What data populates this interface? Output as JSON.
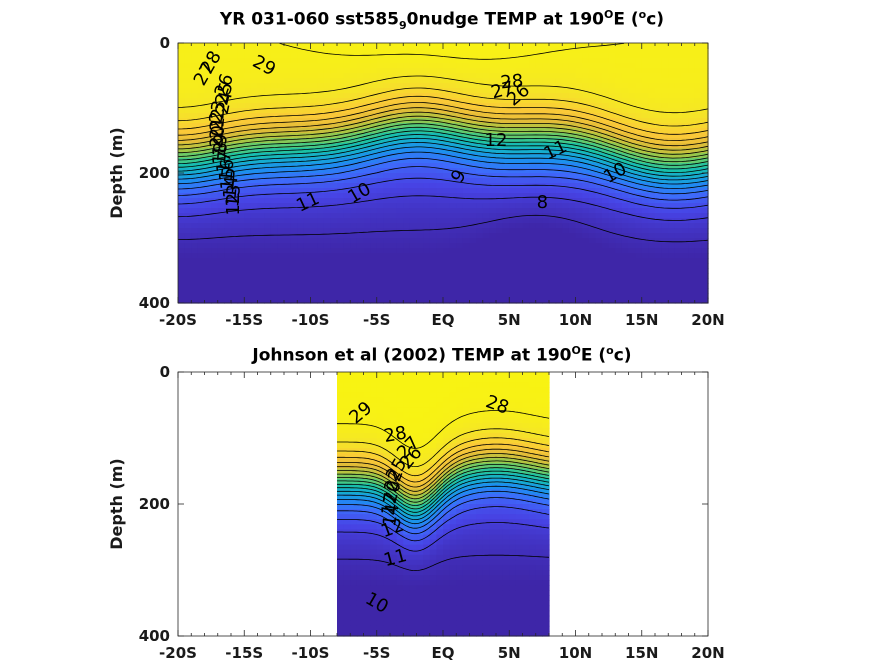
{
  "chart_data": [
    {
      "type": "heatmap",
      "subtype": "filled-contour",
      "title_parts": [
        "YR 031-060 sst585",
        "9",
        "0nudge TEMP at 190",
        "O",
        "E (",
        "o",
        "c)"
      ],
      "ylabel": "Depth (m)",
      "xticks": [
        "-20S",
        "-15S",
        "-10S",
        "-5S",
        "EQ",
        "5N",
        "10N",
        "15N",
        "20N"
      ],
      "xtick_values": [
        -20,
        -15,
        -10,
        -5,
        0,
        5,
        10,
        15,
        20
      ],
      "yticks": [
        "0",
        "200",
        "400"
      ],
      "ytick_values": [
        0,
        200,
        400
      ],
      "xlim": [
        -20,
        20
      ],
      "ylim": [
        400,
        0
      ],
      "data_extent": [
        -20,
        20
      ],
      "colormap": [
        "#3e26a8",
        "#4743e4",
        "#3e6bfb",
        "#1d8ef0",
        "#16abd1",
        "#18c1a8",
        "#5acb73",
        "#a8c642",
        "#e3bc38",
        "#fbc938",
        "#f5e527",
        "#f9f60e"
      ],
      "contour_levels": [
        8,
        9,
        10,
        11,
        12,
        13,
        14,
        15,
        16,
        17,
        18,
        19,
        20,
        21,
        22,
        23,
        24,
        25,
        26,
        27,
        28,
        29
      ],
      "contour_labels": [
        {
          "text": "29",
          "x": -13.5,
          "y": 35,
          "rot": 28
        },
        {
          "text": "28",
          "x": -17.5,
          "y": 30,
          "rot": -60
        },
        {
          "text": "27",
          "x": -18.0,
          "y": 48,
          "rot": -60
        },
        {
          "text": "26",
          "x": -16.5,
          "y": 65,
          "rot": -70
        },
        {
          "text": "25",
          "x": -16.5,
          "y": 78,
          "rot": -75
        },
        {
          "text": "24",
          "x": -16.5,
          "y": 92,
          "rot": -78
        },
        {
          "text": "23",
          "x": -17.0,
          "y": 106,
          "rot": -80
        },
        {
          "text": "22",
          "x": -17.0,
          "y": 118,
          "rot": -85
        },
        {
          "text": "21",
          "x": -17.0,
          "y": 131,
          "rot": -85
        },
        {
          "text": "20",
          "x": -17.0,
          "y": 144,
          "rot": -85
        },
        {
          "text": "19",
          "x": -16.8,
          "y": 157,
          "rot": -85
        },
        {
          "text": "18",
          "x": -16.8,
          "y": 170,
          "rot": -85
        },
        {
          "text": "17",
          "x": -16.5,
          "y": 183,
          "rot": -85
        },
        {
          "text": "16",
          "x": -16.3,
          "y": 196,
          "rot": -85
        },
        {
          "text": "15",
          "x": -16.2,
          "y": 209,
          "rot": -85
        },
        {
          "text": "14",
          "x": -16.0,
          "y": 222,
          "rot": -85
        },
        {
          "text": "13",
          "x": -15.8,
          "y": 235,
          "rot": -85
        },
        {
          "text": "12",
          "x": -15.8,
          "y": 248,
          "rot": -90
        },
        {
          "text": "11",
          "x": -10.2,
          "y": 245,
          "rot": -25
        },
        {
          "text": "10",
          "x": -6.3,
          "y": 231,
          "rot": -30
        },
        {
          "text": "9",
          "x": 1.2,
          "y": 205,
          "rot": -60
        },
        {
          "text": "8",
          "x": 7.5,
          "y": 245,
          "rot": 0
        },
        {
          "text": "28",
          "x": 5.2,
          "y": 60,
          "rot": -5
        },
        {
          "text": "27",
          "x": 4.5,
          "y": 73,
          "rot": -15
        },
        {
          "text": "26",
          "x": 5.7,
          "y": 80,
          "rot": -40
        },
        {
          "text": "12",
          "x": 4.0,
          "y": 150,
          "rot": 0
        },
        {
          "text": "11",
          "x": 8.5,
          "y": 165,
          "rot": -25
        },
        {
          "text": "10",
          "x": 13.0,
          "y": 200,
          "rot": -30
        }
      ]
    },
    {
      "type": "heatmap",
      "subtype": "filled-contour",
      "title_parts": [
        "Johnson et al (2002) TEMP at 190",
        "O",
        "E (",
        "o",
        "c)"
      ],
      "ylabel": "Depth (m)",
      "xticks": [
        "-20S",
        "-15S",
        "-10S",
        "-5S",
        "EQ",
        "5N",
        "10N",
        "15N",
        "20N"
      ],
      "xtick_values": [
        -20,
        -15,
        -10,
        -5,
        0,
        5,
        10,
        15,
        20
      ],
      "yticks": [
        "0",
        "200",
        "400"
      ],
      "ytick_values": [
        0,
        200,
        400
      ],
      "xlim": [
        -20,
        20
      ],
      "ylim": [
        400,
        0
      ],
      "data_extent": [
        -8,
        8
      ],
      "colormap": [
        "#3e26a8",
        "#4743e4",
        "#3e6bfb",
        "#1d8ef0",
        "#16abd1",
        "#18c1a8",
        "#5acb73",
        "#a8c642",
        "#e3bc38",
        "#fbc938",
        "#f5e527",
        "#f9f60e"
      ],
      "contour_levels": [
        10,
        11,
        12,
        13,
        14,
        15,
        16,
        17,
        18,
        19,
        20,
        21,
        22,
        23,
        24,
        25,
        26,
        27,
        28,
        29
      ],
      "contour_labels": [
        {
          "text": "29",
          "x": -6.2,
          "y": 62,
          "rot": -40
        },
        {
          "text": "28",
          "x": 4.1,
          "y": 50,
          "rot": 20
        },
        {
          "text": "28",
          "x": -3.6,
          "y": 95,
          "rot": -10
        },
        {
          "text": "27",
          "x": -2.6,
          "y": 115,
          "rot": -45
        },
        {
          "text": "26",
          "x": -2.4,
          "y": 130,
          "rot": -50
        },
        {
          "text": "25",
          "x": -3.5,
          "y": 148,
          "rot": -60
        },
        {
          "text": "22",
          "x": -3.7,
          "y": 165,
          "rot": -70
        },
        {
          "text": "20",
          "x": -3.8,
          "y": 182,
          "rot": -75
        },
        {
          "text": "17",
          "x": -4.0,
          "y": 200,
          "rot": -80
        },
        {
          "text": "14",
          "x": -3.9,
          "y": 217,
          "rot": -80
        },
        {
          "text": "12",
          "x": -3.8,
          "y": 237,
          "rot": -20
        },
        {
          "text": "11",
          "x": -3.6,
          "y": 282,
          "rot": -15
        },
        {
          "text": "10",
          "x": -5.0,
          "y": 350,
          "rot": 30
        }
      ]
    }
  ]
}
